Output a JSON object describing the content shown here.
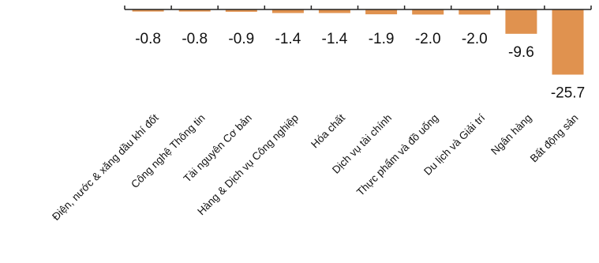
{
  "chart_data": {
    "type": "bar",
    "categories": [
      "Điện, nước & xăng dầu khí đốt",
      "Công nghệ Thông tin",
      "Tài nguyên Cơ bản",
      "Hàng & Dịch vụ Công nghiệp",
      "Hóa chất",
      "Dịch vụ tài chính",
      "Thực phẩm và đồ uống",
      "Du lịch và Giải trí",
      "Ngân hàng",
      "Bất động sản"
    ],
    "values": [
      -0.8,
      -0.8,
      -0.9,
      -1.4,
      -1.4,
      -1.9,
      -2.0,
      -2.0,
      -9.6,
      -25.7
    ],
    "value_labels": [
      "-0.8",
      "-0.8",
      "-0.9",
      "-1.4",
      "-1.4",
      "-1.9",
      "-2.0",
      "-2.0",
      "-9.6",
      "-25.7"
    ],
    "title": "",
    "xlabel": "",
    "ylabel": "",
    "ylim": [
      -25.7,
      0
    ],
    "bar_color": "#E0924F",
    "axis_color": "#222222",
    "grid": false,
    "legend": "none"
  }
}
